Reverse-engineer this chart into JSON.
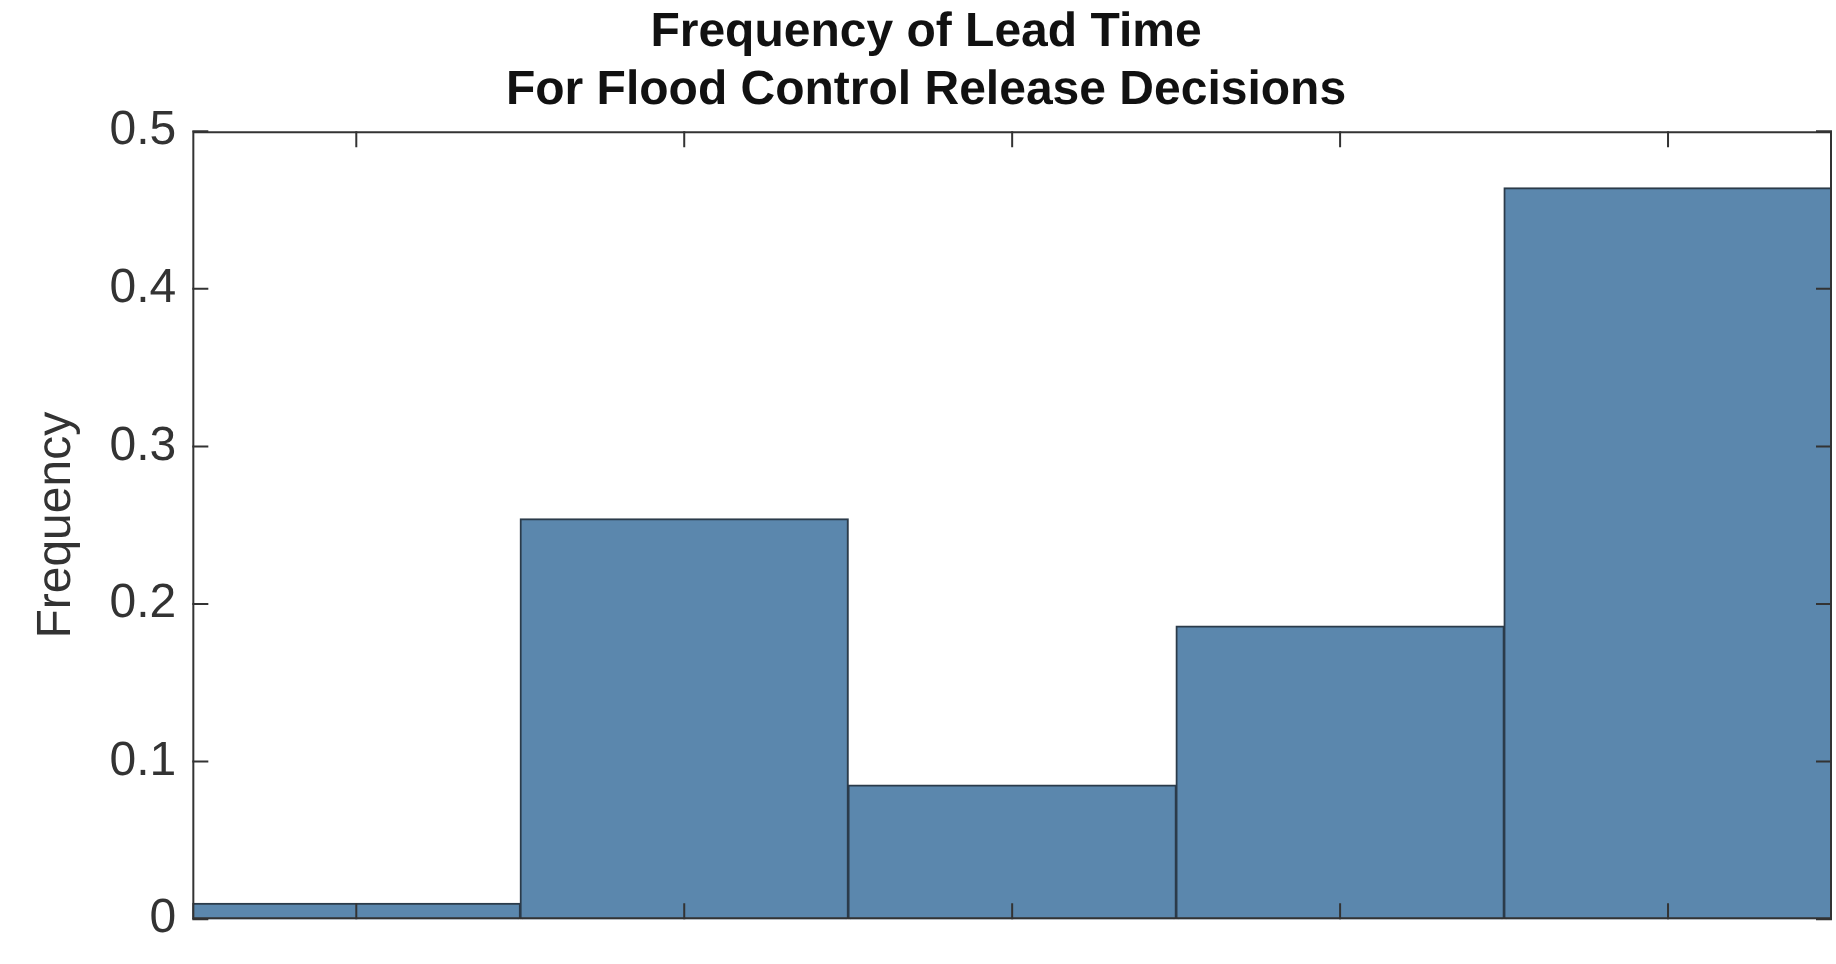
{
  "chart_data": {
    "type": "bar",
    "title": "Frequency of Lead Time\nFor Flood Control Release Decisions",
    "ylabel": "Frequency",
    "categories": [
      null,
      null,
      null,
      null,
      null
    ],
    "values": [
      0.01,
      0.254,
      0.085,
      0.186,
      0.464
    ],
    "color": "#5b87ad",
    "ylim": [
      0,
      0.5
    ],
    "yticks": [
      0,
      0.1,
      0.2,
      0.3,
      0.4,
      0.5
    ],
    "grid": false,
    "legend": false
  }
}
